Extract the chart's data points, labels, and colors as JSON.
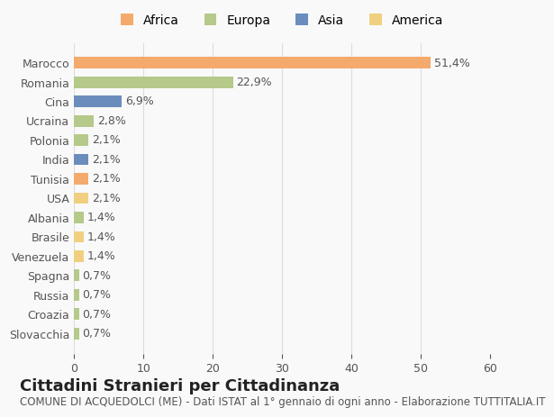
{
  "countries": [
    "Marocco",
    "Romania",
    "Cina",
    "Ucraina",
    "Polonia",
    "India",
    "Tunisia",
    "USA",
    "Albania",
    "Brasile",
    "Venezuela",
    "Spagna",
    "Russia",
    "Croazia",
    "Slovacchia"
  ],
  "values": [
    51.4,
    22.9,
    6.9,
    2.8,
    2.1,
    2.1,
    2.1,
    2.1,
    1.4,
    1.4,
    1.4,
    0.7,
    0.7,
    0.7,
    0.7
  ],
  "labels": [
    "51,4%",
    "22,9%",
    "6,9%",
    "2,8%",
    "2,1%",
    "2,1%",
    "2,1%",
    "2,1%",
    "1,4%",
    "1,4%",
    "1,4%",
    "0,7%",
    "0,7%",
    "0,7%",
    "0,7%"
  ],
  "colors": [
    "#F4A96D",
    "#B5C98A",
    "#6B8DBE",
    "#B5C98A",
    "#B5C98A",
    "#6B8DBE",
    "#F4A96D",
    "#F0D080",
    "#B5C98A",
    "#F0D080",
    "#F0D080",
    "#B5C98A",
    "#B5C98A",
    "#B5C98A",
    "#B5C98A"
  ],
  "continents": [
    "Africa",
    "Europa",
    "Asia",
    "America"
  ],
  "legend_colors": [
    "#F4A96D",
    "#B5C98A",
    "#6B8DBE",
    "#F0D080"
  ],
  "title": "Cittadini Stranieri per Cittadinanza",
  "subtitle": "COMUNE DI ACQUEDOLCI (ME) - Dati ISTAT al 1° gennaio di ogni anno - Elaborazione TUTTITALIA.IT",
  "xlim": [
    0,
    60
  ],
  "xticks": [
    0,
    10,
    20,
    30,
    40,
    50,
    60
  ],
  "background_color": "#f9f9f9",
  "grid_color": "#dddddd",
  "bar_height": 0.6,
  "title_fontsize": 13,
  "subtitle_fontsize": 8.5,
  "label_fontsize": 9,
  "tick_fontsize": 9,
  "legend_fontsize": 10
}
